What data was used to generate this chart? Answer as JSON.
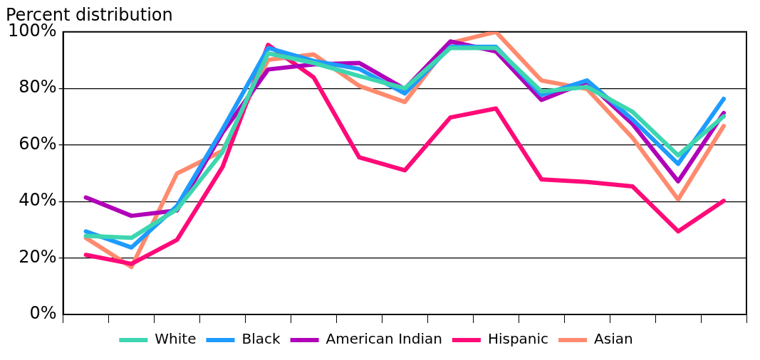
{
  "chart_data": {
    "type": "line",
    "title": "Percent distribution",
    "categories": [
      null,
      null,
      null,
      null,
      null,
      null,
      null,
      null,
      null,
      null,
      null,
      null,
      null,
      null,
      null
    ],
    "series": [
      {
        "name": "White",
        "color": "#3dd6b0",
        "values": [
          27.8,
          27.1,
          37.2,
          57.5,
          92.4,
          89.0,
          84.4,
          80.0,
          94.3,
          94.3,
          78.9,
          80.5,
          71.7,
          56.3,
          70.1
        ]
      },
      {
        "name": "Black",
        "color": "#1e9bff",
        "values": [
          29.4,
          23.7,
          38.4,
          65.5,
          94.3,
          89.7,
          86.9,
          78.2,
          94.7,
          94.7,
          77.7,
          82.8,
          69.0,
          53.3,
          76.3
        ]
      },
      {
        "name": "American Indian",
        "color": "#b000b8",
        "values": [
          41.4,
          34.9,
          36.8,
          64.4,
          86.7,
          88.5,
          89.0,
          79.8,
          96.6,
          93.1,
          75.9,
          82.3,
          67.4,
          47.1,
          71.3
        ]
      },
      {
        "name": "Hispanic",
        "color": "#ff0a78",
        "values": [
          21.1,
          17.9,
          26.4,
          52.2,
          95.4,
          83.9,
          55.6,
          51.0,
          69.7,
          72.9,
          47.8,
          46.9,
          45.3,
          29.4,
          40.2
        ]
      },
      {
        "name": "Asian",
        "color": "#ff8a6e",
        "values": [
          27.1,
          16.8,
          49.9,
          57.9,
          90.1,
          92.0,
          80.9,
          75.2,
          96.1,
          100.0,
          82.8,
          79.8,
          62.5,
          40.7,
          66.7
        ]
      }
    ],
    "ylim": [
      0,
      100
    ],
    "yticks": [
      {
        "value": 0,
        "label": "0%"
      },
      {
        "value": 20,
        "label": "20%"
      },
      {
        "value": 40,
        "label": "40%"
      },
      {
        "value": 60,
        "label": "60%"
      },
      {
        "value": 80,
        "label": "80%"
      },
      {
        "value": 100,
        "label": "100%"
      }
    ],
    "tick_labels": "y",
    "grid": "y",
    "legend": "bottom",
    "marker": "none",
    "line_style": "solid"
  }
}
